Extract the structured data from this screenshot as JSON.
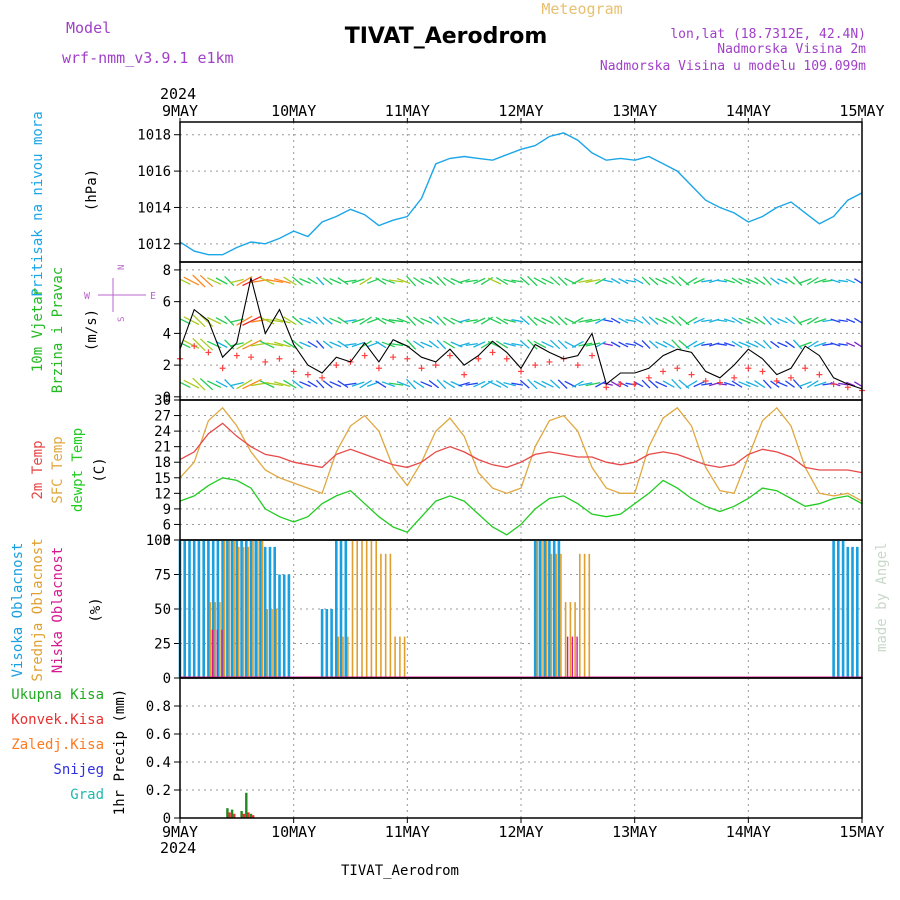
{
  "header": {
    "model_label": "Model",
    "model_value": "wrf-nmm_v3.9.1 e1km",
    "station_title": "TIVAT_Aerodrom",
    "meteogram_label": "Meteogram",
    "lonlat": "lon,lat (18.7312E, 42.4N)",
    "elevation": "Nadmorska Visina 2m",
    "model_elevation": "Nadmorska Visina u modelu 109.099m",
    "year_top": "2024",
    "year_bottom": "2024",
    "footer": "TIVAT_Aerodrom",
    "credit": "made by Angel"
  },
  "colors": {
    "pressure": "#1ba6e8",
    "wind_label": "#22bb22",
    "wind_line": "#000000",
    "gust": "#ff4040",
    "temp2m": "#e84848",
    "sfc": "#e0a840",
    "dew": "#22cc22",
    "high_cloud": "#1aa0e0",
    "mid_cloud": "#e0a030",
    "low_cloud": "#d81890",
    "precip_total": "#228822",
    "precip_conv": "#e83030",
    "precip_frozen": "#ff7a20",
    "snow": "#3030e0",
    "grad": "#20b8b0",
    "compass": "#bb66cc"
  },
  "chart_data": [
    {
      "type": "line",
      "panel": "pressure",
      "ylabel": [
        "Pritisak na nivou mora",
        "(hPa)"
      ],
      "ylim": [
        1011,
        1018.7
      ],
      "yticks": [
        1012,
        1014,
        1016,
        1018
      ],
      "xlim": [
        0,
        144
      ],
      "xtick_labels": [
        "9MAY",
        "10MAY",
        "11MAY",
        "12MAY",
        "13MAY",
        "14MAY",
        "15MAY"
      ],
      "grid": true,
      "series": [
        {
          "x": [
            0,
            3,
            6,
            9,
            12,
            15,
            18,
            21,
            24,
            27,
            30,
            33,
            36,
            39,
            42,
            45,
            48,
            51,
            54,
            57,
            60,
            63,
            66,
            69,
            72,
            75,
            78,
            81,
            84,
            87,
            90,
            93,
            96,
            99,
            102,
            105,
            108,
            111,
            114,
            117,
            120,
            123,
            126,
            129,
            132,
            135,
            138,
            141,
            144
          ],
          "values": [
            1012.1,
            1011.6,
            1011.4,
            1011.4,
            1011.8,
            1012.1,
            1012.0,
            1012.3,
            1012.7,
            1012.4,
            1013.2,
            1013.5,
            1013.9,
            1013.6,
            1013.0,
            1013.3,
            1013.5,
            1014.5,
            1016.4,
            1016.7,
            1016.8,
            1016.7,
            1016.6,
            1016.9,
            1017.2,
            1017.4,
            1017.9,
            1018.1,
            1017.7,
            1017.0,
            1016.6,
            1016.7,
            1016.6,
            1016.8,
            1016.4,
            1016.0,
            1015.2,
            1014.4,
            1014.0,
            1013.7,
            1013.2,
            1013.5,
            1014.0,
            1014.3,
            1013.7,
            1013.1,
            1013.5,
            1014.4,
            1014.8
          ]
        }
      ]
    },
    {
      "type": "line",
      "panel": "wind",
      "ylabel": [
        "10m Vjetar",
        "Brzina i Pravac",
        "(m/s)"
      ],
      "compass": [
        "N",
        "E",
        "W",
        "S"
      ],
      "ylim": [
        -0.2,
        8.5
      ],
      "yticks": [
        0,
        2,
        4,
        6,
        8
      ],
      "grid": true,
      "series": [
        {
          "name": "speed",
          "x": [
            0,
            3,
            6,
            9,
            12,
            15,
            18,
            21,
            24,
            27,
            30,
            33,
            36,
            39,
            42,
            45,
            48,
            51,
            54,
            57,
            60,
            63,
            66,
            69,
            72,
            75,
            78,
            81,
            84,
            87,
            90,
            93,
            96,
            99,
            102,
            105,
            108,
            111,
            114,
            117,
            120,
            123,
            126,
            129,
            132,
            135,
            138,
            141,
            144
          ],
          "values": [
            3.0,
            5.5,
            4.8,
            2.5,
            3.4,
            7.5,
            4.0,
            5.5,
            3.3,
            2.0,
            1.5,
            2.5,
            2.2,
            3.4,
            2.2,
            3.6,
            3.2,
            2.5,
            2.2,
            3.0,
            2.0,
            2.6,
            3.5,
            2.8,
            1.8,
            3.3,
            2.8,
            2.4,
            2.6,
            4.0,
            0.8,
            1.5,
            1.5,
            1.8,
            2.6,
            3.0,
            2.8,
            1.6,
            1.2,
            2.0,
            3.0,
            2.4,
            1.4,
            1.8,
            3.2,
            2.6,
            1.2,
            0.8,
            0.5
          ]
        },
        {
          "name": "gust",
          "x": [
            0,
            3,
            6,
            9,
            12,
            15,
            18,
            21,
            24,
            27,
            30,
            33,
            36,
            39,
            42,
            45,
            48,
            51,
            54,
            57,
            60,
            63,
            66,
            69,
            72,
            75,
            78,
            81,
            84,
            87,
            90,
            93,
            96,
            99,
            102,
            105,
            108,
            111,
            114,
            117,
            120,
            123,
            126,
            129,
            132,
            135,
            138,
            141,
            144
          ],
          "values": [
            2.4,
            3.2,
            2.8,
            1.8,
            2.6,
            2.5,
            2.2,
            2.4,
            1.6,
            1.4,
            1.2,
            2.0,
            2.2,
            2.6,
            1.8,
            2.5,
            2.4,
            1.8,
            2.0,
            2.6,
            1.4,
            2.4,
            2.8,
            2.4,
            1.6,
            2.0,
            2.2,
            2.4,
            2.0,
            2.6,
            0.6,
            0.8,
            0.8,
            1.2,
            1.6,
            1.8,
            1.4,
            1.0,
            0.9,
            1.2,
            1.8,
            1.6,
            1.0,
            1.2,
            1.8,
            1.4,
            0.8,
            0.6,
            0.4
          ]
        }
      ]
    },
    {
      "type": "line",
      "panel": "temperature",
      "ylabel": [
        "2m Temp",
        "SFC Temp",
        "dewpt Temp",
        "(C)"
      ],
      "ylim": [
        3,
        30
      ],
      "yticks": [
        3,
        6,
        9,
        12,
        15,
        18,
        21,
        24,
        27,
        30
      ],
      "grid": true,
      "series": [
        {
          "name": "2m Temp",
          "x": [
            0,
            3,
            6,
            9,
            12,
            15,
            18,
            21,
            24,
            27,
            30,
            33,
            36,
            39,
            42,
            45,
            48,
            51,
            54,
            57,
            60,
            63,
            66,
            69,
            72,
            75,
            78,
            81,
            84,
            87,
            90,
            93,
            96,
            99,
            102,
            105,
            108,
            111,
            114,
            117,
            120,
            123,
            126,
            129,
            132,
            135,
            138,
            141,
            144
          ],
          "values": [
            18.5,
            20,
            23.5,
            25.5,
            23,
            21,
            19.5,
            19,
            18,
            17.5,
            17,
            19.5,
            20.5,
            19.5,
            18.5,
            17.5,
            17,
            18,
            20,
            21,
            20,
            18.5,
            17.5,
            17,
            18,
            19.5,
            20,
            19.5,
            19,
            19,
            18,
            17.5,
            18,
            19.5,
            20,
            19.5,
            18.5,
            17.5,
            17,
            17.5,
            19.5,
            20.5,
            20,
            19,
            17,
            16.5,
            16.5,
            16.5,
            16
          ]
        },
        {
          "name": "SFC Temp",
          "x": [
            0,
            3,
            6,
            9,
            12,
            15,
            18,
            21,
            24,
            27,
            30,
            33,
            36,
            39,
            42,
            45,
            48,
            51,
            54,
            57,
            60,
            63,
            66,
            69,
            72,
            75,
            78,
            81,
            84,
            87,
            90,
            93,
            96,
            99,
            102,
            105,
            108,
            111,
            114,
            117,
            120,
            123,
            126,
            129,
            132,
            135,
            138,
            141,
            144
          ],
          "values": [
            15,
            18,
            26,
            28.5,
            25,
            20,
            16.5,
            15,
            14,
            13,
            12,
            20,
            25,
            27,
            24,
            17,
            13.5,
            18,
            24,
            26.5,
            23,
            16,
            13,
            12,
            13,
            21,
            26,
            27,
            24,
            17,
            13,
            12,
            12,
            21,
            26.5,
            28.5,
            25,
            17,
            12.5,
            12,
            19,
            26,
            28.5,
            25,
            17,
            12,
            11.5,
            12,
            10.5
          ]
        },
        {
          "name": "dewpt Temp",
          "x": [
            0,
            3,
            6,
            9,
            12,
            15,
            18,
            21,
            24,
            27,
            30,
            33,
            36,
            39,
            42,
            45,
            48,
            51,
            54,
            57,
            60,
            63,
            66,
            69,
            72,
            75,
            78,
            81,
            84,
            87,
            90,
            93,
            96,
            99,
            102,
            105,
            108,
            111,
            114,
            117,
            120,
            123,
            126,
            129,
            132,
            135,
            138,
            141,
            144
          ],
          "values": [
            10.5,
            11.5,
            13.5,
            15,
            14.5,
            13,
            9,
            7.5,
            6.5,
            7.5,
            10,
            11.5,
            12.5,
            10,
            7.5,
            5.5,
            4.5,
            7.5,
            10.5,
            11.5,
            10.5,
            8,
            5.5,
            4,
            6,
            9,
            11,
            11.5,
            10,
            8,
            7.5,
            8,
            10,
            12,
            14.5,
            13,
            11,
            9.5,
            8.5,
            9.5,
            11,
            13,
            12.5,
            11,
            9.5,
            10,
            11,
            11.5,
            10
          ]
        }
      ]
    },
    {
      "type": "bar",
      "panel": "clouds",
      "ylabel": [
        "Visoka Oblacnost",
        "Srednja Oblacnost",
        "Niska Oblacnost",
        "(%)"
      ],
      "ylim": [
        0,
        100
      ],
      "yticks": [
        0,
        25,
        50,
        75,
        100
      ],
      "grid": true,
      "series": [
        {
          "name": "Visoka Oblacnost",
          "x": [
            0,
            3,
            6,
            9,
            12,
            15,
            18,
            21,
            24,
            27,
            30,
            33,
            36,
            39,
            42,
            45,
            48,
            51,
            54,
            57,
            60,
            63,
            66,
            69,
            72,
            75,
            78,
            81,
            84,
            87,
            90,
            93,
            96,
            99,
            102,
            105,
            108,
            111,
            114,
            117,
            120,
            123,
            126,
            129,
            132,
            135,
            138,
            141,
            144
          ],
          "values": [
            100,
            100,
            100,
            100,
            100,
            100,
            95,
            75,
            0,
            0,
            50,
            100,
            0,
            0,
            0,
            0,
            0,
            0,
            0,
            0,
            0,
            0,
            0,
            0,
            0,
            100,
            100,
            0,
            0,
            0,
            0,
            0,
            0,
            0,
            0,
            0,
            0,
            0,
            0,
            0,
            0,
            0,
            0,
            0,
            0,
            0,
            100,
            95,
            0
          ]
        },
        {
          "name": "Srednja Oblacnost",
          "x": [
            0,
            3,
            6,
            9,
            12,
            15,
            18,
            21,
            24,
            27,
            30,
            33,
            36,
            39,
            42,
            45,
            48,
            51,
            54,
            57,
            60,
            63,
            66,
            69,
            72,
            75,
            78,
            81,
            84,
            87,
            90,
            93,
            96,
            99,
            102,
            105,
            108,
            111,
            114,
            117,
            120,
            123,
            126,
            129,
            132,
            135,
            138,
            141,
            144
          ],
          "values": [
            0,
            0,
            55,
            100,
            95,
            100,
            50,
            0,
            0,
            0,
            0,
            30,
            100,
            100,
            90,
            30,
            0,
            0,
            0,
            0,
            0,
            0,
            0,
            0,
            0,
            100,
            90,
            55,
            90,
            0,
            0,
            0,
            0,
            0,
            0,
            0,
            0,
            0,
            0,
            0,
            0,
            0,
            0,
            0,
            0,
            0,
            0,
            0,
            0
          ]
        },
        {
          "name": "Niska Oblacnost",
          "x": [
            0,
            3,
            6,
            9,
            12,
            15,
            18,
            21,
            24,
            27,
            30,
            33,
            36,
            39,
            42,
            45,
            48,
            51,
            54,
            57,
            60,
            63,
            66,
            69,
            72,
            75,
            78,
            81,
            84,
            87,
            90,
            93,
            96,
            99,
            102,
            105,
            108,
            111,
            114,
            117,
            120,
            123,
            126,
            129,
            132,
            135,
            138,
            141,
            144
          ],
          "values": [
            0,
            0,
            35,
            0,
            0,
            0,
            0,
            0,
            0,
            0,
            0,
            0,
            0,
            0,
            0,
            0,
            0,
            0,
            0,
            0,
            0,
            0,
            0,
            0,
            0,
            0,
            0,
            30,
            0,
            0,
            0,
            0,
            0,
            0,
            0,
            0,
            0,
            0,
            0,
            0,
            0,
            0,
            0,
            0,
            0,
            0,
            0,
            0,
            0
          ]
        }
      ]
    },
    {
      "type": "bar",
      "panel": "precipitation",
      "ylabel": [
        "1hr Precip (mm)"
      ],
      "legend": [
        "Ukupna Kisa",
        "Konvek.Kisa",
        "Zaledj.Kisa",
        "Snijeg",
        "Grad"
      ],
      "ylim": [
        0,
        1.0
      ],
      "yticks": [
        0,
        0.2,
        0.4,
        0.6,
        0.8
      ],
      "grid": true,
      "series": [
        {
          "name": "Ukupna Kisa",
          "x": [
            10,
            11,
            13,
            14,
            15
          ],
          "values": [
            0.07,
            0.06,
            0.05,
            0.18,
            0.03
          ]
        },
        {
          "name": "Konvek.Kisa",
          "x": [
            10,
            11,
            13,
            14,
            15
          ],
          "values": [
            0.04,
            0.03,
            0.03,
            0.04,
            0.02
          ]
        }
      ]
    }
  ]
}
